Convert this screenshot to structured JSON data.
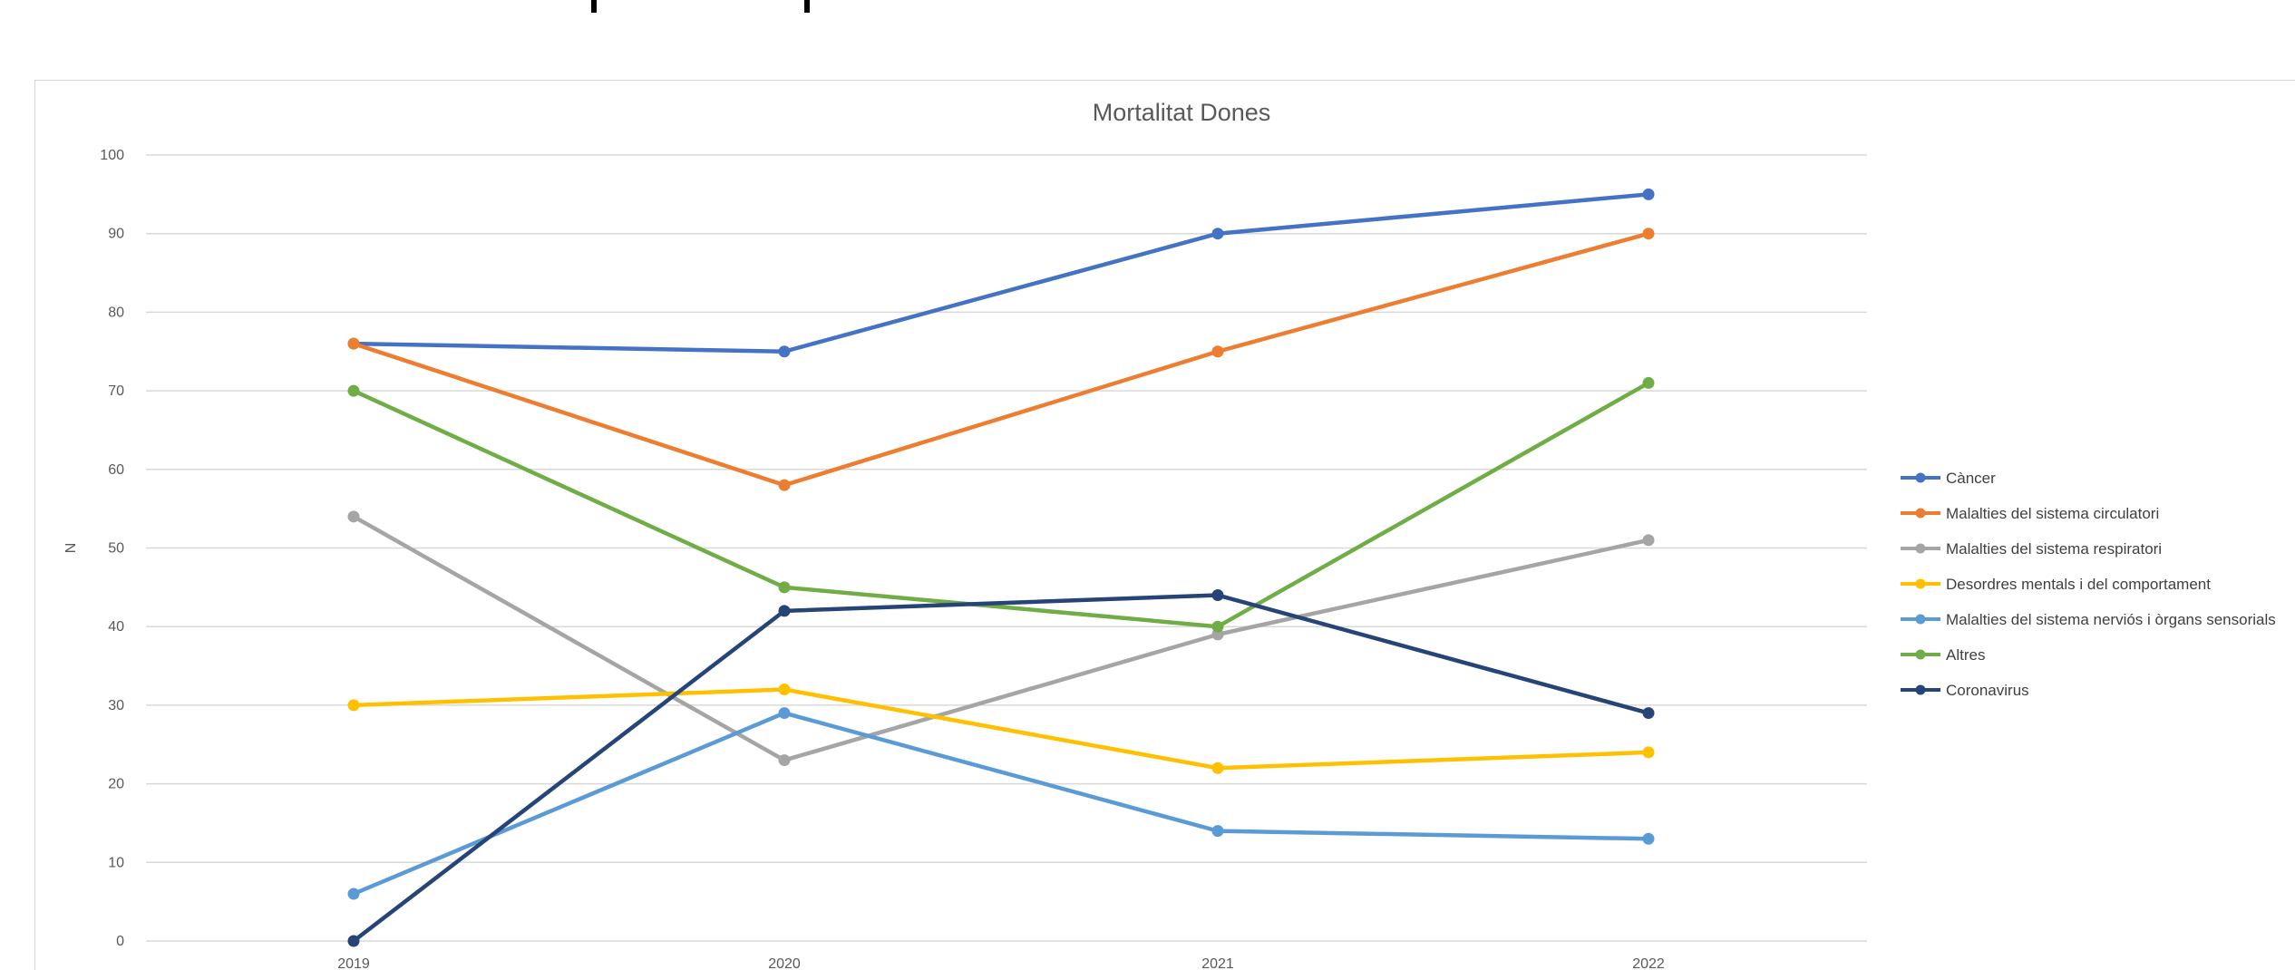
{
  "chart_data": {
    "type": "line",
    "title": "Mortalitat Dones",
    "xlabel": "",
    "ylabel": "N",
    "categories": [
      "2019",
      "2020",
      "2021",
      "2022"
    ],
    "ylim": [
      0,
      100
    ],
    "yticks": [
      0,
      10,
      20,
      30,
      40,
      50,
      60,
      70,
      80,
      90,
      100
    ],
    "grid": true,
    "legend_position": "right",
    "series": [
      {
        "name": "Càncer",
        "color": "#4472c4",
        "values": [
          76,
          75,
          90,
          95
        ]
      },
      {
        "name": "Malalties del sistema circulatori",
        "color": "#ed7d31",
        "values": [
          76,
          58,
          75,
          90
        ]
      },
      {
        "name": "Malalties del sistema respiratori",
        "color": "#a5a5a5",
        "values": [
          54,
          23,
          39,
          51
        ]
      },
      {
        "name": "Desordres mentals i del comportament",
        "color": "#ffc000",
        "values": [
          30,
          32,
          22,
          24
        ]
      },
      {
        "name": "Malalties del sistema nerviós i òrgans sensorials",
        "color": "#5b9bd5",
        "values": [
          6,
          29,
          14,
          13
        ]
      },
      {
        "name": "Altres",
        "color": "#70ad47",
        "values": [
          70,
          45,
          40,
          71
        ]
      },
      {
        "name": "Coronavirus",
        "color": "#264478",
        "values": [
          0,
          42,
          44,
          29
        ]
      }
    ]
  }
}
